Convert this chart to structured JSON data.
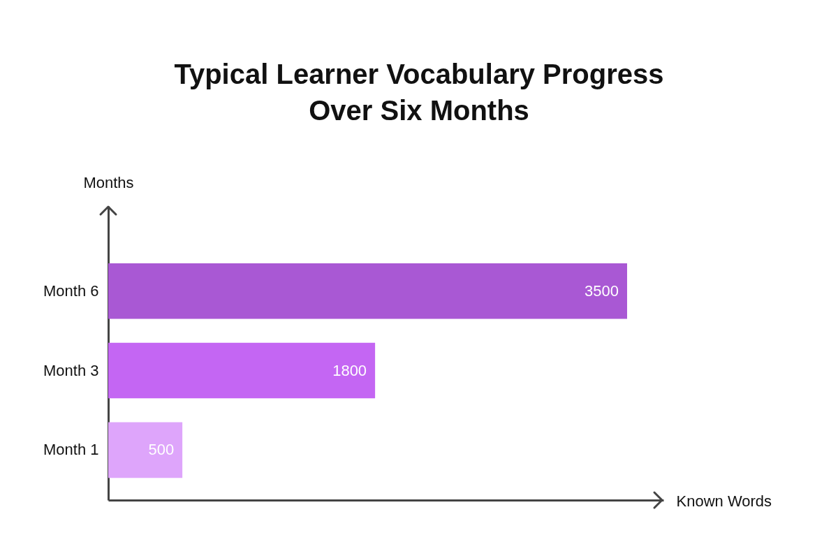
{
  "chart_data": {
    "type": "bar",
    "orientation": "horizontal",
    "title": "Typical Learner Vocabulary Progress Over Six Months",
    "xlabel": "Known Words",
    "ylabel": "Months",
    "categories": [
      "Month 6",
      "Month 3",
      "Month 1"
    ],
    "values": [
      3500,
      1800,
      500
    ],
    "colors": [
      "#a958d4",
      "#c466f3",
      "#dea5fb"
    ],
    "data_labels": true,
    "tick_labels": "y",
    "grid": false,
    "legend": false
  }
}
